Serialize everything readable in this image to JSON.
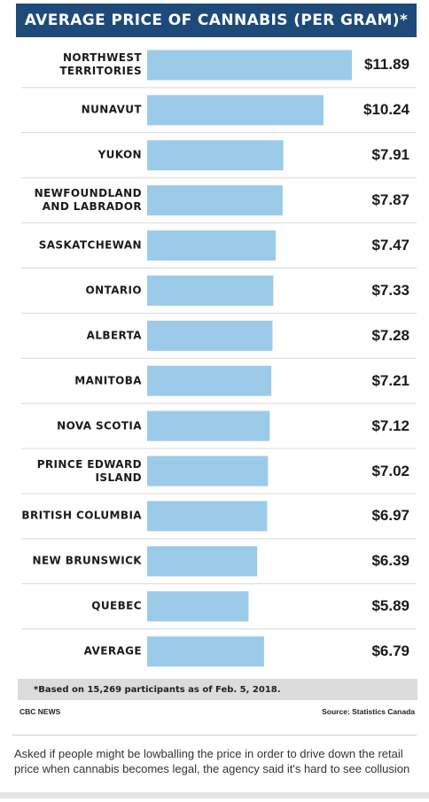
{
  "chart_data": {
    "type": "bar",
    "orientation": "horizontal",
    "title": "AVERAGE PRICE OF CANNABIS (PER GRAM)*",
    "categories": [
      "NORTHWEST\nTERRITORIES",
      "NUNAVUT",
      "YUKON",
      "NEWFOUNDLAND\nAND LABRADOR",
      "SASKATCHEWAN",
      "ONTARIO",
      "ALBERTA",
      "MANITOBA",
      "NOVA SCOTIA",
      "PRINCE EDWARD\nISLAND",
      "BRITISH COLUMBIA",
      "NEW BRUNSWICK",
      "QUEBEC",
      "AVERAGE"
    ],
    "values": [
      11.89,
      10.24,
      7.91,
      7.87,
      7.47,
      7.33,
      7.28,
      7.21,
      7.12,
      7.02,
      6.97,
      6.39,
      5.89,
      6.79
    ],
    "value_labels": [
      "$11.89",
      "$10.24",
      "$7.91",
      "$7.87",
      "$7.47",
      "$7.33",
      "$7.28",
      "$7.21",
      "$7.12",
      "$7.02",
      "$6.97",
      "$6.39",
      "$5.89",
      "$6.79"
    ],
    "xlim": [
      0,
      11.89
    ],
    "grid": false,
    "bar_color": "#9ccbea",
    "header_color": "#1e4a7a",
    "separator_color": "#d9d9d9"
  },
  "footnote": "*Based on 15,269 participants as of Feb. 5, 2018.",
  "credit_left": "CBC NEWS",
  "credit_right": "Source: Statistics Canada",
  "caption": "Asked if people might be lowballing the price in order to drive down the retail price when cannabis becomes legal, the agency said it's hard to see collusion"
}
